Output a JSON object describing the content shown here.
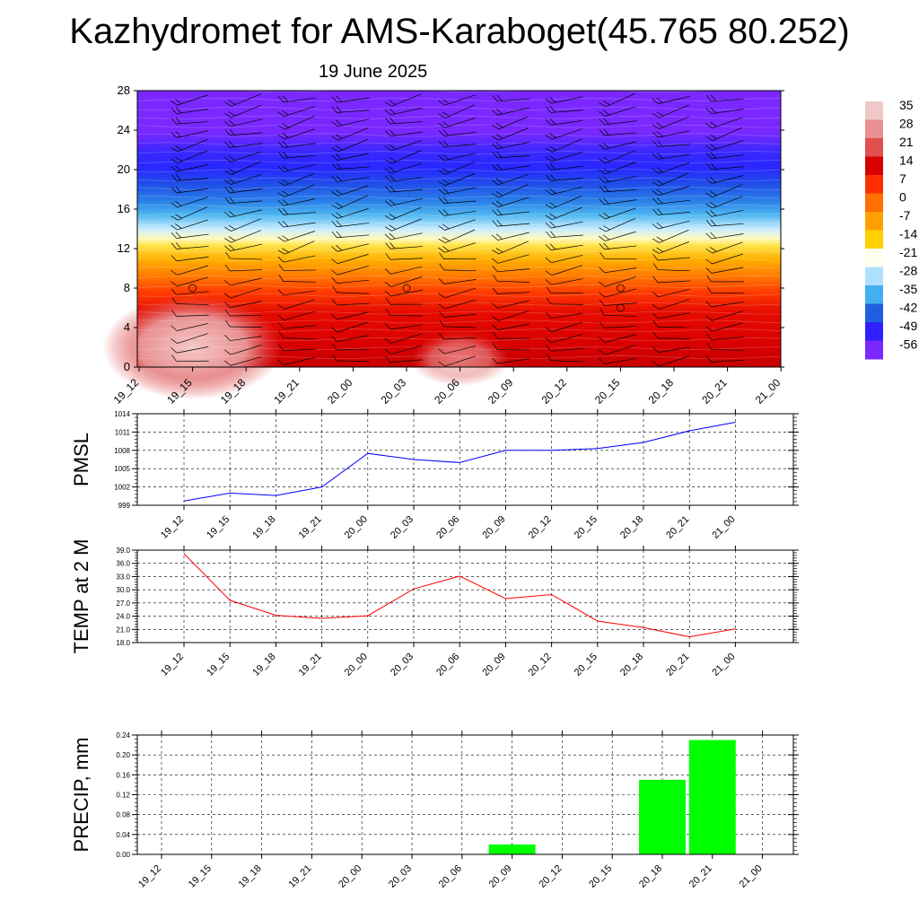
{
  "title": "Kazhydromet for AMS-Karaboget(45.765 80.252)",
  "subtitle": "19 June 2025",
  "time_labels": [
    "19_12",
    "19_15",
    "19_18",
    "19_21",
    "20_00",
    "20_03",
    "20_06",
    "20_09",
    "20_12",
    "20_15",
    "20_18",
    "20_21",
    "21_00"
  ],
  "colors": {
    "pmsl_line": "#0000ff",
    "temp_line": "#ff0000",
    "precip_bar": "#00ff00",
    "grid": "#000000"
  },
  "chart_data": [
    {
      "type": "heatmap",
      "title": "",
      "xlabel": "",
      "ylabel": "",
      "x": [
        "19_12",
        "19_15",
        "19_18",
        "19_21",
        "20_00",
        "20_03",
        "20_06",
        "20_09",
        "20_12",
        "20_15",
        "20_18",
        "20_21",
        "21_00"
      ],
      "ylim": [
        0,
        28
      ],
      "yticks": [
        0,
        4,
        8,
        12,
        16,
        20,
        24,
        28
      ],
      "colorbar_labels": [
        "35",
        "28",
        "21",
        "14",
        "7",
        "0",
        "-7",
        "-14",
        "-21",
        "-28",
        "-35",
        "-42",
        "-49",
        "-56"
      ],
      "colorbar_colors": [
        "#f0c8c8",
        "#e89090",
        "#e05050",
        "#d80000",
        "#ff3000",
        "#ff7000",
        "#ffa000",
        "#ffd000",
        "#fffff0",
        "#b0e0ff",
        "#40b0f0",
        "#2060e0",
        "#3020ff",
        "#7a28ff"
      ],
      "overlay": "wind barbs"
    },
    {
      "type": "line",
      "ylabel": "PMSL",
      "x": [
        "19_12",
        "19_15",
        "19_18",
        "19_21",
        "20_00",
        "20_03",
        "20_06",
        "20_09",
        "20_12",
        "20_15",
        "20_18",
        "20_21",
        "21_00"
      ],
      "series": [
        {
          "values": [
            999.7,
            1001.0,
            1000.6,
            1002.0,
            1007.5,
            1006.5,
            1006.0,
            1008.0,
            1008.0,
            1008.3,
            1009.3,
            1011.2,
            1012.6
          ]
        }
      ],
      "ylim": [
        999,
        1014
      ],
      "yticks": [
        "999",
        "1002",
        "1005",
        "1008",
        "1011",
        "1014"
      ],
      "grid": true
    },
    {
      "type": "line",
      "ylabel": "TEMP at 2 M",
      "x": [
        "19_12",
        "19_15",
        "19_18",
        "19_21",
        "20_00",
        "20_03",
        "20_06",
        "20_09",
        "20_12",
        "20_15",
        "20_18",
        "20_21",
        "21_00"
      ],
      "series": [
        {
          "values": [
            38.2,
            27.6,
            24.2,
            23.5,
            24.1,
            30.2,
            33.1,
            28.0,
            28.9,
            22.9,
            21.4,
            19.3,
            21.1
          ]
        }
      ],
      "ylim": [
        18,
        39
      ],
      "yticks": [
        "18.0",
        "21.0",
        "24.0",
        "27.0",
        "30.0",
        "33.0",
        "36.0",
        "39.0"
      ],
      "grid": true
    },
    {
      "type": "bar",
      "ylabel": "PRECIP, mm",
      "categories": [
        "19_12",
        "19_15",
        "19_18",
        "19_21",
        "20_00",
        "20_03",
        "20_06",
        "20_09",
        "20_12",
        "20_15",
        "20_18",
        "20_21",
        "21_00"
      ],
      "values": [
        0,
        0,
        0,
        0,
        0,
        0,
        0,
        0.02,
        0,
        0,
        0.15,
        0.23,
        0
      ],
      "ylim": [
        0,
        0.24
      ],
      "yticks": [
        "0.00",
        "0.04",
        "0.08",
        "0.12",
        "0.16",
        "0.20",
        "0.24"
      ],
      "grid": true
    }
  ]
}
